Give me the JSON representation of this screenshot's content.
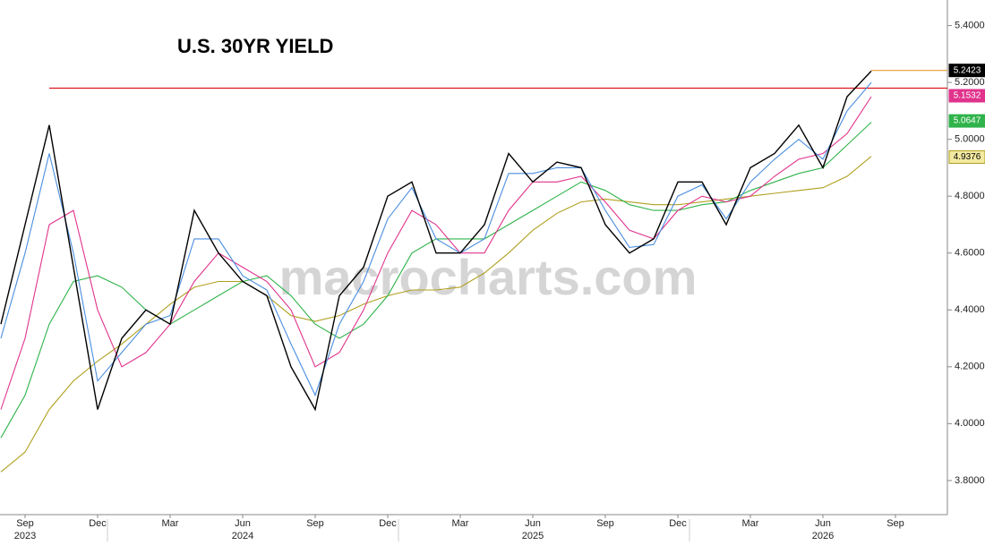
{
  "chart_data": {
    "type": "line",
    "title": "U.S. 30YR YIELD",
    "watermark": "macrocharts.com",
    "x": [
      "2023-08",
      "2023-09",
      "2023-10",
      "2023-11",
      "2023-12",
      "2024-01",
      "2024-02",
      "2024-03",
      "2024-04",
      "2024-05",
      "2024-06",
      "2024-07",
      "2024-08",
      "2024-09",
      "2024-10",
      "2024-11",
      "2024-12",
      "2025-01",
      "2025-02",
      "2025-03",
      "2025-04",
      "2025-05",
      "2025-06",
      "2025-07",
      "2025-08",
      "2025-09",
      "2025-10",
      "2025-11",
      "2025-12",
      "2026-01",
      "2026-02",
      "2026-03",
      "2026-04",
      "2026-05",
      "2026-06",
      "2026-07",
      "2026-08"
    ],
    "xlim": [
      "2023-08",
      "2026-11"
    ],
    "xticks": [
      {
        "value": "2023-09",
        "label": "Sep"
      },
      {
        "value": "2023-12",
        "label": "Dec"
      },
      {
        "value": "2024-03",
        "label": "Mar"
      },
      {
        "value": "2024-06",
        "label": "Jun"
      },
      {
        "value": "2024-09",
        "label": "Sep"
      },
      {
        "value": "2024-12",
        "label": "Dec"
      },
      {
        "value": "2025-03",
        "label": "Mar"
      },
      {
        "value": "2025-06",
        "label": "Jun"
      },
      {
        "value": "2025-09",
        "label": "Sep"
      },
      {
        "value": "2025-12",
        "label": "Dec"
      },
      {
        "value": "2026-03",
        "label": "Mar"
      },
      {
        "value": "2026-06",
        "label": "Jun"
      },
      {
        "value": "2026-09",
        "label": "Sep"
      }
    ],
    "year_labels": [
      {
        "value": "2023-09",
        "label": "2023"
      },
      {
        "value": "2024-06",
        "label": "2024"
      },
      {
        "value": "2025-06",
        "label": "2025"
      },
      {
        "value": "2026-06",
        "label": "2026"
      }
    ],
    "ylim": [
      3.68,
      5.49
    ],
    "yticks": [
      {
        "value": 3.8,
        "label": "3.8000"
      },
      {
        "value": 4.0,
        "label": "4.0000"
      },
      {
        "value": 4.2,
        "label": "4.2000"
      },
      {
        "value": 4.4,
        "label": "4.4000"
      },
      {
        "value": 4.6,
        "label": "4.6000"
      },
      {
        "value": 4.8,
        "label": "4.8000"
      },
      {
        "value": 5.0,
        "label": "5.0000"
      },
      {
        "value": 5.2,
        "label": "5.2000"
      },
      {
        "value": 5.4,
        "label": "5.4000"
      }
    ],
    "hlines": [
      {
        "value": 5.18,
        "from": "2023-10",
        "color": "#e0141e"
      },
      {
        "value": 5.2423,
        "from": "2026-08",
        "color": "#e8a030"
      }
    ],
    "series": [
      {
        "color": "#b0a020",
        "last": 4.9376,
        "values": [
          3.83,
          3.9,
          4.05,
          4.15,
          4.22,
          4.28,
          4.35,
          4.42,
          4.48,
          4.5,
          4.5,
          4.45,
          4.38,
          4.36,
          4.38,
          4.42,
          4.45,
          4.47,
          4.47,
          4.48,
          4.53,
          4.6,
          4.68,
          4.74,
          4.78,
          4.79,
          4.78,
          4.77,
          4.77,
          4.78,
          4.79,
          4.8,
          4.81,
          4.82,
          4.83,
          4.87,
          4.94
        ]
      },
      {
        "color": "#2fb34a",
        "last": 5.0647,
        "values": [
          3.95,
          4.1,
          4.35,
          4.5,
          4.52,
          4.48,
          4.4,
          4.35,
          4.4,
          4.45,
          4.5,
          4.52,
          4.45,
          4.35,
          4.3,
          4.35,
          4.45,
          4.6,
          4.65,
          4.65,
          4.65,
          4.7,
          4.75,
          4.8,
          4.85,
          4.82,
          4.77,
          4.75,
          4.75,
          4.77,
          4.78,
          4.82,
          4.85,
          4.88,
          4.9,
          4.98,
          5.06
        ]
      },
      {
        "color": "#e0338c",
        "last": 5.1532,
        "values": [
          4.05,
          4.3,
          4.7,
          4.75,
          4.4,
          4.2,
          4.25,
          4.35,
          4.5,
          4.6,
          4.55,
          4.5,
          4.4,
          4.2,
          4.25,
          4.4,
          4.6,
          4.75,
          4.7,
          4.6,
          4.6,
          4.75,
          4.85,
          4.85,
          4.87,
          4.78,
          4.68,
          4.65,
          4.75,
          4.8,
          4.78,
          4.8,
          4.87,
          4.93,
          4.95,
          5.02,
          5.15
        ]
      },
      {
        "color": "#4a8ee0",
        "values": [
          4.3,
          4.6,
          4.95,
          4.6,
          4.15,
          4.25,
          4.35,
          4.38,
          4.65,
          4.65,
          4.52,
          4.47,
          4.28,
          4.1,
          4.35,
          4.5,
          4.72,
          4.83,
          4.65,
          4.6,
          4.65,
          4.88,
          4.88,
          4.9,
          4.9,
          4.75,
          4.62,
          4.63,
          4.8,
          4.84,
          4.72,
          4.85,
          4.93,
          5.0,
          4.93,
          5.1,
          5.2
        ]
      },
      {
        "color": "#000000",
        "last": 5.2423,
        "values": [
          4.35,
          4.7,
          5.05,
          4.55,
          4.05,
          4.3,
          4.4,
          4.35,
          4.75,
          4.6,
          4.5,
          4.45,
          4.2,
          4.05,
          4.45,
          4.55,
          4.8,
          4.85,
          4.6,
          4.6,
          4.7,
          4.95,
          4.85,
          4.92,
          4.9,
          4.7,
          4.6,
          4.65,
          4.85,
          4.85,
          4.7,
          4.9,
          4.95,
          5.05,
          4.9,
          5.15,
          5.24
        ]
      }
    ]
  }
}
